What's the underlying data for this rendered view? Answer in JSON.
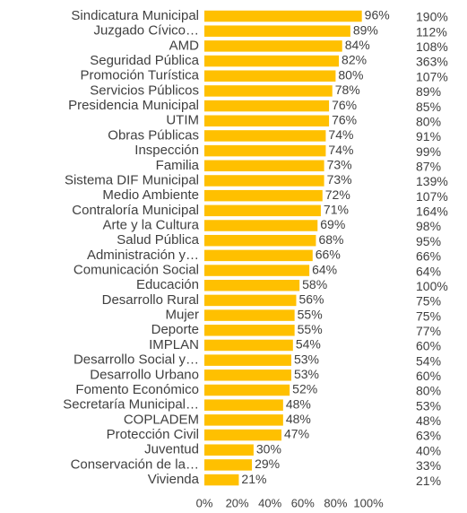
{
  "chart_data": {
    "type": "bar",
    "orientation": "horizontal",
    "color": "#ffc000",
    "categories": [
      "Sindicatura Municipal",
      "Juzgado Cívico…",
      "AMD",
      "Seguridad Pública",
      "Promoción Turística",
      "Servicios Públicos",
      "Presidencia Municipal",
      "UTIM",
      "Obras Públicas",
      "Inspección",
      "Familia",
      "Sistema DIF Municipal",
      "Medio Ambiente",
      "Contraloría Municipal",
      "Arte y la Cultura",
      "Salud Pública",
      "Administración y…",
      "Comunicación Social",
      "Educación",
      "Desarrollo Rural",
      "Mujer",
      "Deporte",
      "IMPLAN",
      "Desarrollo Social y…",
      "Desarrollo Urbano",
      "Fomento Económico",
      "Secretaría Municipal…",
      "COPLADEM",
      "Protección Civil",
      "Juventud",
      "Conservación de la…",
      "Vivienda"
    ],
    "values": [
      96,
      89,
      84,
      82,
      80,
      78,
      76,
      76,
      74,
      74,
      73,
      73,
      72,
      71,
      69,
      68,
      66,
      64,
      58,
      56,
      55,
      55,
      54,
      53,
      53,
      52,
      48,
      48,
      47,
      30,
      29,
      21
    ],
    "value_labels": [
      "96%",
      "89%",
      "84%",
      "82%",
      "80%",
      "78%",
      "76%",
      "76%",
      "74%",
      "74%",
      "73%",
      "73%",
      "72%",
      "71%",
      "69%",
      "68%",
      "66%",
      "64%",
      "58%",
      "56%",
      "55%",
      "55%",
      "54%",
      "53%",
      "53%",
      "52%",
      "48%",
      "48%",
      "47%",
      "30%",
      "29%",
      "21%"
    ],
    "extra_column": [
      "190%",
      "112%",
      "108%",
      "363%",
      "107%",
      "89%",
      "85%",
      "80%",
      "91%",
      "99%",
      "87%",
      "139%",
      "107%",
      "164%",
      "98%",
      "95%",
      "66%",
      "64%",
      "100%",
      "75%",
      "75%",
      "77%",
      "60%",
      "54%",
      "60%",
      "80%",
      "53%",
      "48%",
      "63%",
      "40%",
      "33%",
      "21%"
    ],
    "xlim": [
      0,
      100
    ],
    "xticks": [
      {
        "value": 0,
        "label": "0%"
      },
      {
        "value": 20,
        "label": "20%"
      },
      {
        "value": 40,
        "label": "40%"
      },
      {
        "value": 60,
        "label": "60%"
      },
      {
        "value": 80,
        "label": "80%"
      },
      {
        "value": 100,
        "label": "100%"
      }
    ]
  }
}
